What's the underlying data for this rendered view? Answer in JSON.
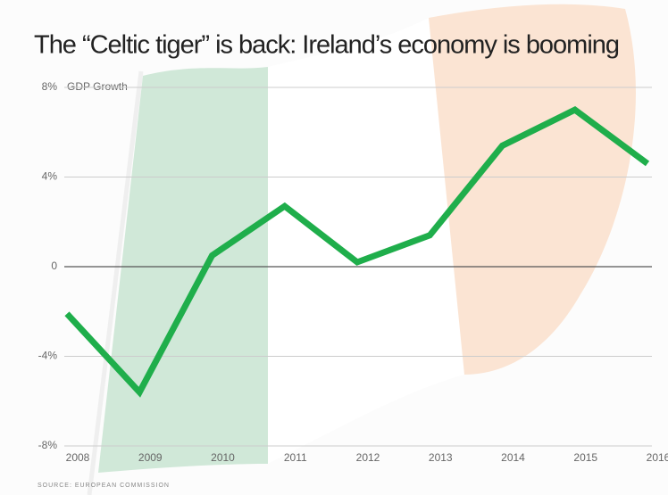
{
  "chart_data": {
    "type": "line",
    "title": "The “Celtic tiger” is back: Ireland’s economy is booming",
    "y_label": "GDP Growth",
    "source": "SOURCE: EUROPEAN COMMISSION",
    "categories": [
      "2008",
      "2009",
      "2010",
      "2011",
      "2012",
      "2013",
      "2014",
      "2015",
      "2016"
    ],
    "series": [
      {
        "name": "GDP Growth",
        "color": "#1fae4b",
        "values": [
          -2.1,
          -5.6,
          0.5,
          2.7,
          0.2,
          1.4,
          5.4,
          7.0,
          4.6
        ]
      }
    ],
    "ylim": [
      -8,
      8
    ],
    "yticks": [
      {
        "value": -8,
        "label": "-8%"
      },
      {
        "value": -4,
        "label": "-4%"
      },
      0,
      {
        "value": 4,
        "label": "4%"
      },
      {
        "value": 8,
        "label": "8%"
      }
    ],
    "grid": true
  }
}
